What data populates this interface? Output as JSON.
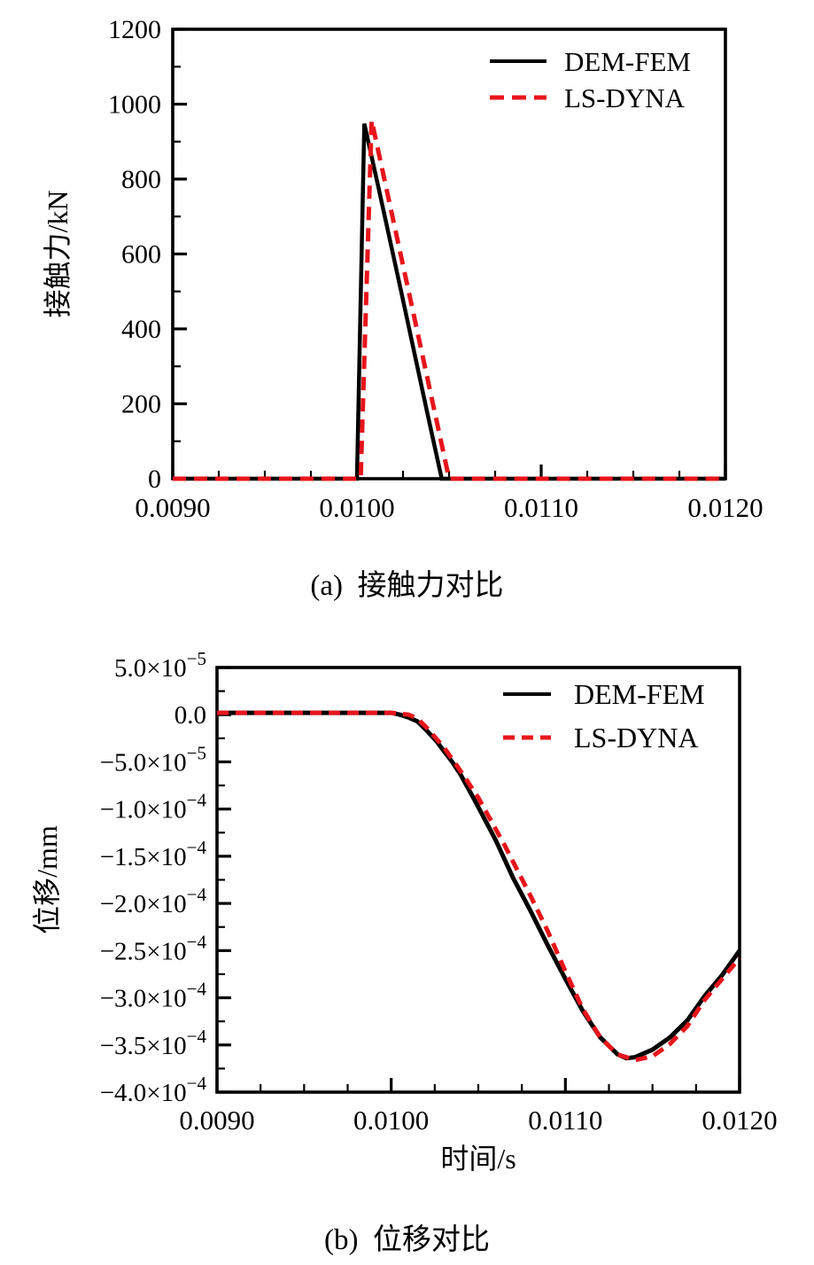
{
  "figure": {
    "background": "#ffffff",
    "captions": {
      "a": "(a)  接触力对比",
      "b": "(b)  位移对比"
    }
  },
  "colors": {
    "dem_fem": "#000000",
    "ls_dyna": "#e8141b"
  },
  "chart_data": [
    {
      "id": "a",
      "type": "line",
      "caption": "(a)  接触力对比",
      "xlabel": "",
      "ylabel": "接触力/kN",
      "xlim": [
        0.009,
        0.012
      ],
      "ylim": [
        0,
        1200
      ],
      "x_ticks": [
        0.009,
        0.01,
        0.011,
        0.012
      ],
      "x_tick_labels": [
        "0.0090",
        "0.0100",
        "0.0110",
        "0.0120"
      ],
      "x_minor_divisions": 4,
      "y_ticks": [
        0,
        200,
        400,
        600,
        800,
        1000,
        1200
      ],
      "y_tick_labels": [
        "0",
        "200",
        "400",
        "600",
        "800",
        "1000",
        "1200"
      ],
      "y_minor_divisions": 2,
      "grid": false,
      "legend_position": "top-right-inside",
      "legend_entries": [
        "DEM-FEM",
        "LS-DYNA"
      ],
      "series": [
        {
          "name": "DEM-FEM",
          "style": "solid",
          "color": "#000000",
          "points": [
            [
              0.009,
              0
            ],
            [
              0.01,
              0
            ],
            [
              0.01004,
              948
            ],
            [
              0.01012,
              770
            ],
            [
              0.01024,
              500
            ],
            [
              0.01038,
              180
            ],
            [
              0.01046,
              0
            ],
            [
              0.012,
              0
            ]
          ]
        },
        {
          "name": "LS-DYNA",
          "style": "dashed",
          "color": "#e8141b",
          "points": [
            [
              0.009,
              0
            ],
            [
              0.01002,
              0
            ],
            [
              0.01008,
              957
            ],
            [
              0.01018,
              729
            ],
            [
              0.0103,
              456
            ],
            [
              0.01042,
              182
            ],
            [
              0.0105,
              0
            ],
            [
              0.012,
              0
            ]
          ]
        }
      ]
    },
    {
      "id": "b",
      "type": "line",
      "caption": "(b)  位移对比",
      "xlabel": "时间/s",
      "ylabel": "位移/mm",
      "xlim": [
        0.009,
        0.012
      ],
      "ylim": [
        -0.0004,
        5e-05
      ],
      "x_ticks": [
        0.009,
        0.01,
        0.011,
        0.012
      ],
      "x_tick_labels": [
        "0.0090",
        "0.0100",
        "0.0110",
        "0.0120"
      ],
      "x_minor_divisions": 4,
      "y_ticks": [
        5e-05,
        0.0,
        -5e-05,
        -0.0001,
        -0.00015,
        -0.0002,
        -0.00025,
        -0.0003,
        -0.00035,
        -0.0004
      ],
      "y_tick_labels": [
        "5.0×10^−5",
        "0.0",
        "−5.0×10^−5",
        "−1.0×10^−4",
        "−1.5×10^−4",
        "−2.0×10^−4",
        "−2.5×10^−4",
        "−3.0×10^−4",
        "−3.5×10^−4",
        "−4.0×10^−4"
      ],
      "y_minor_divisions": 2,
      "grid": false,
      "legend_position": "top-right-inside",
      "legend_entries": [
        "DEM-FEM",
        "LS-DYNA"
      ],
      "series": [
        {
          "name": "DEM-FEM",
          "style": "solid",
          "color": "#000000",
          "points": [
            [
              0.009,
              2e-06
            ],
            [
              0.01,
              2e-06
            ],
            [
              0.01005,
              0
            ],
            [
              0.0101,
              -3e-06
            ],
            [
              0.01015,
              -7e-06
            ],
            [
              0.0102,
              -1.6e-05
            ],
            [
              0.01026,
              -2.8e-05
            ],
            [
              0.0103,
              -3.8e-05
            ],
            [
              0.01035,
              -5e-05
            ],
            [
              0.0104,
              -6.4e-05
            ],
            [
              0.01048,
              -9.1e-05
            ],
            [
              0.0106,
              -0.000133
            ],
            [
              0.0107,
              -0.000173
            ],
            [
              0.0108,
              -0.000208
            ],
            [
              0.0109,
              -0.000245
            ],
            [
              0.011,
              -0.00028
            ],
            [
              0.0111,
              -0.000314
            ],
            [
              0.0112,
              -0.000342
            ],
            [
              0.0113,
              -0.00036
            ],
            [
              0.01135,
              -0.000364
            ],
            [
              0.0114,
              -0.000363
            ],
            [
              0.0115,
              -0.000355
            ],
            [
              0.0116,
              -0.000342
            ],
            [
              0.0117,
              -0.000324
            ],
            [
              0.0118,
              -0.000298
            ],
            [
              0.0119,
              -0.000276
            ],
            [
              0.012,
              -0.00025
            ]
          ]
        },
        {
          "name": "LS-DYNA",
          "style": "dashed",
          "color": "#e8141b",
          "points": [
            [
              0.009,
              2e-06
            ],
            [
              0.01,
              2e-06
            ],
            [
              0.0101,
              0
            ],
            [
              0.01015,
              -4e-06
            ],
            [
              0.0102,
              -1.3e-05
            ],
            [
              0.0103,
              -3.4e-05
            ],
            [
              0.0104,
              -6e-05
            ],
            [
              0.0105,
              -8.8e-05
            ],
            [
              0.01065,
              -0.000138
            ],
            [
              0.0108,
              -0.000192
            ],
            [
              0.0109,
              -0.00023
            ],
            [
              0.011,
              -0.000272
            ],
            [
              0.0111,
              -0.000312
            ],
            [
              0.0112,
              -0.000342
            ],
            [
              0.0113,
              -0.00036
            ],
            [
              0.0114,
              -0.000366
            ],
            [
              0.0115,
              -0.000362
            ],
            [
              0.0116,
              -0.000349
            ],
            [
              0.0117,
              -0.00033
            ],
            [
              0.0118,
              -0.000302
            ],
            [
              0.0119,
              -0.00028
            ],
            [
              0.012,
              -0.000258
            ]
          ]
        }
      ]
    }
  ]
}
